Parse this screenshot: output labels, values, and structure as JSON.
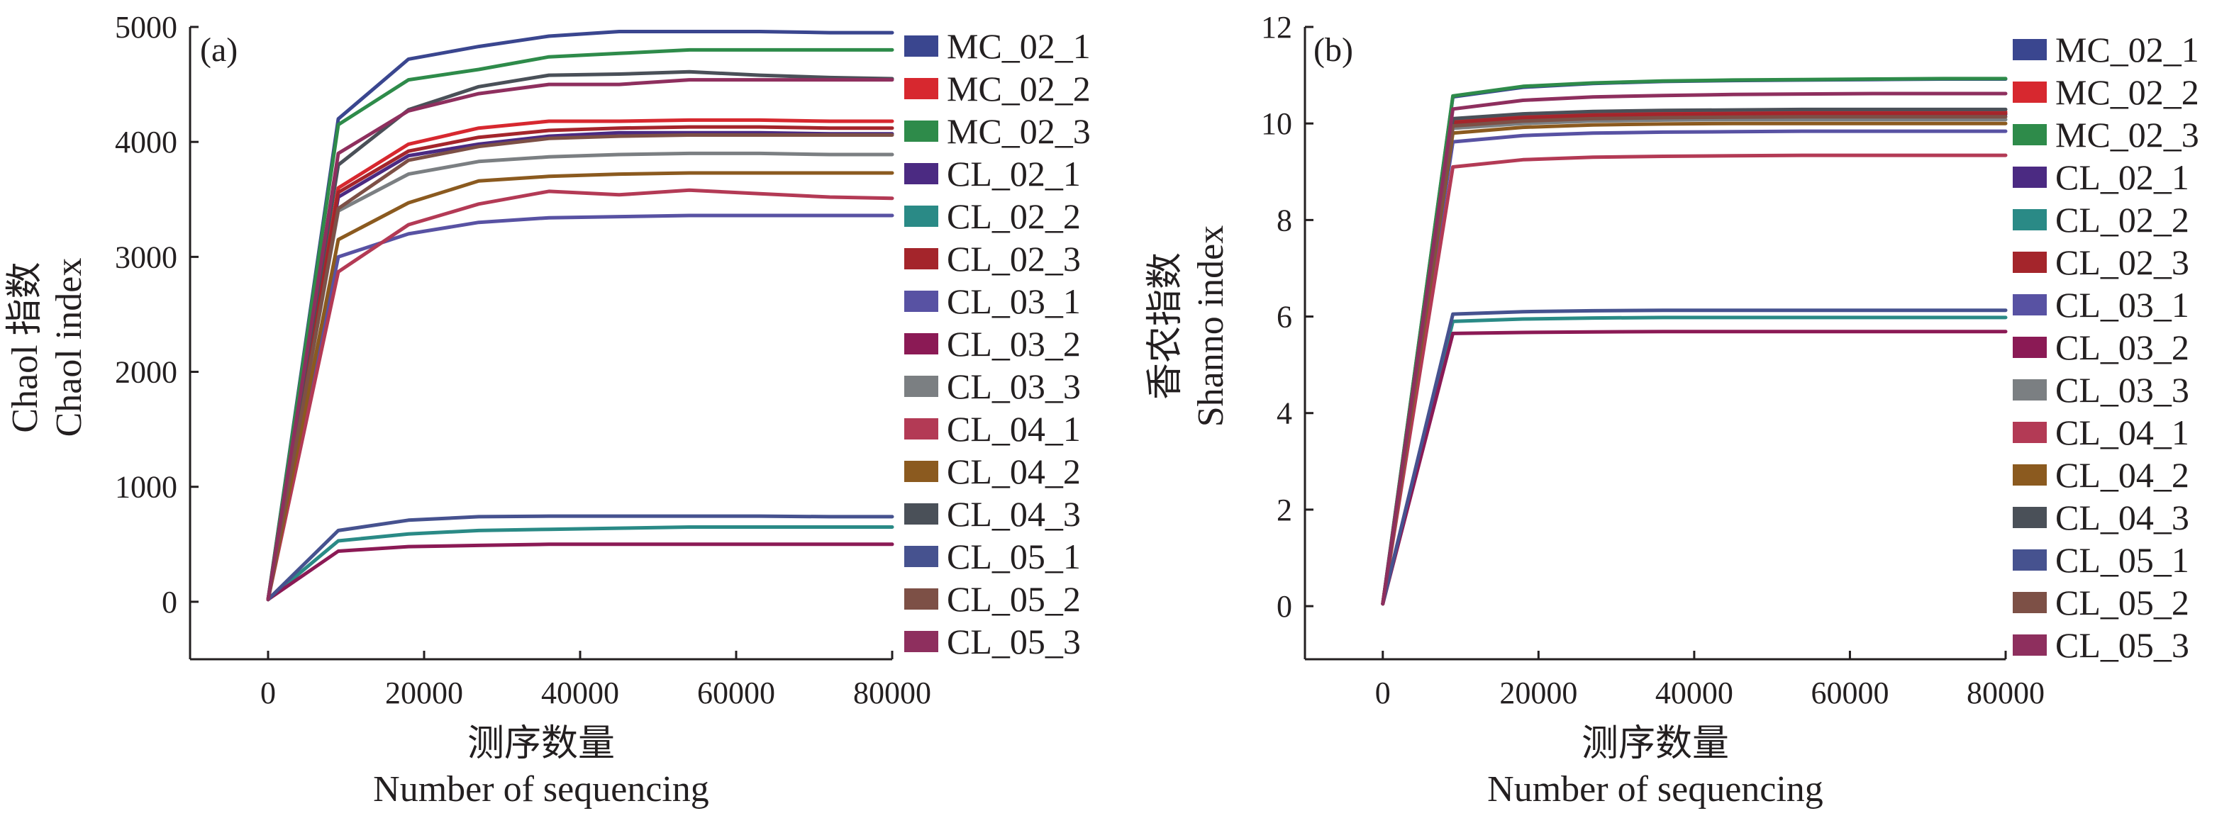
{
  "chart_data": [
    {
      "type": "line",
      "panel_label": "(a)",
      "xlabel_cn": "测序数量",
      "xlabel_en": "Number of sequencing",
      "ylabel_cn": "Chaol 指数",
      "ylabel_en": "Chaol index",
      "xlim": [
        -10000,
        80000
      ],
      "ylim": [
        -500,
        5000
      ],
      "xticks": [
        "0",
        "20000",
        "40000",
        "60000",
        "80000"
      ],
      "yticks": [
        "0",
        "1000",
        "2000",
        "3000",
        "4000",
        "5000"
      ],
      "grid": false,
      "legend_position": "right",
      "series": [
        {
          "name": "MC_02_1",
          "color": "#3a468f",
          "x": [
            0,
            9000,
            18000,
            27000,
            36000,
            45000,
            54000,
            63000,
            72000,
            80000
          ],
          "y": [
            20,
            4200,
            4720,
            4830,
            4920,
            4960,
            4960,
            4960,
            4950,
            4950
          ]
        },
        {
          "name": "MC_02_2",
          "color": "#d7282f",
          "x": [
            0,
            9000,
            18000,
            27000,
            36000,
            45000,
            54000,
            63000,
            72000,
            80000
          ],
          "y": [
            20,
            3600,
            3980,
            4120,
            4180,
            4180,
            4190,
            4190,
            4180,
            4180
          ]
        },
        {
          "name": "MC_02_3",
          "color": "#2e8b4a",
          "x": [
            0,
            9000,
            18000,
            27000,
            36000,
            45000,
            54000,
            63000,
            72000,
            80000
          ],
          "y": [
            20,
            4150,
            4540,
            4630,
            4740,
            4770,
            4800,
            4800,
            4800,
            4800
          ]
        },
        {
          "name": "CL_02_1",
          "color": "#4b2a82",
          "x": [
            0,
            9000,
            18000,
            27000,
            36000,
            45000,
            54000,
            63000,
            72000,
            80000
          ],
          "y": [
            20,
            3520,
            3880,
            3980,
            4050,
            4080,
            4080,
            4080,
            4070,
            4070
          ]
        },
        {
          "name": "CL_02_2",
          "color": "#2a8a86",
          "x": [
            0,
            9000,
            18000,
            27000,
            36000,
            45000,
            54000,
            63000,
            72000,
            80000
          ],
          "y": [
            20,
            530,
            590,
            620,
            630,
            640,
            650,
            650,
            650,
            650
          ]
        },
        {
          "name": "CL_02_3",
          "color": "#a4252b",
          "x": [
            0,
            9000,
            18000,
            27000,
            36000,
            45000,
            54000,
            63000,
            72000,
            80000
          ],
          "y": [
            20,
            3560,
            3920,
            4040,
            4100,
            4120,
            4130,
            4130,
            4120,
            4120
          ]
        },
        {
          "name": "CL_03_1",
          "color": "#5852a3",
          "x": [
            0,
            9000,
            18000,
            27000,
            36000,
            45000,
            54000,
            63000,
            72000,
            80000
          ],
          "y": [
            20,
            3000,
            3200,
            3300,
            3340,
            3350,
            3360,
            3360,
            3360,
            3360
          ]
        },
        {
          "name": "CL_03_2",
          "color": "#8b1a55",
          "x": [
            0,
            9000,
            18000,
            27000,
            36000,
            45000,
            54000,
            63000,
            72000,
            80000
          ],
          "y": [
            20,
            440,
            480,
            490,
            500,
            500,
            500,
            500,
            500,
            500
          ]
        },
        {
          "name": "CL_03_3",
          "color": "#7b7f82",
          "x": [
            0,
            9000,
            18000,
            27000,
            36000,
            45000,
            54000,
            63000,
            72000,
            80000
          ],
          "y": [
            20,
            3400,
            3720,
            3830,
            3870,
            3890,
            3900,
            3900,
            3890,
            3890
          ]
        },
        {
          "name": "CL_04_1",
          "color": "#b33a55",
          "x": [
            0,
            9000,
            18000,
            27000,
            36000,
            45000,
            54000,
            63000,
            72000,
            80000
          ],
          "y": [
            20,
            2870,
            3280,
            3460,
            3570,
            3540,
            3580,
            3550,
            3520,
            3510
          ]
        },
        {
          "name": "CL_04_2",
          "color": "#8b5a1f",
          "x": [
            0,
            9000,
            18000,
            27000,
            36000,
            45000,
            54000,
            63000,
            72000,
            80000
          ],
          "y": [
            20,
            3150,
            3470,
            3660,
            3700,
            3720,
            3730,
            3730,
            3730,
            3730
          ]
        },
        {
          "name": "CL_04_3",
          "color": "#4a5058",
          "x": [
            0,
            9000,
            18000,
            27000,
            36000,
            45000,
            54000,
            63000,
            72000,
            80000
          ],
          "y": [
            20,
            3800,
            4280,
            4480,
            4580,
            4590,
            4610,
            4580,
            4560,
            4550
          ]
        },
        {
          "name": "CL_05_1",
          "color": "#46528f",
          "x": [
            0,
            9000,
            18000,
            27000,
            36000,
            45000,
            54000,
            63000,
            72000,
            80000
          ],
          "y": [
            20,
            620,
            710,
            740,
            745,
            745,
            745,
            745,
            740,
            740
          ]
        },
        {
          "name": "CL_05_2",
          "color": "#7d5046",
          "x": [
            0,
            9000,
            18000,
            27000,
            36000,
            45000,
            54000,
            63000,
            72000,
            80000
          ],
          "y": [
            20,
            3420,
            3840,
            3960,
            4030,
            4050,
            4060,
            4060,
            4060,
            4060
          ]
        },
        {
          "name": "CL_05_3",
          "color": "#8e2f5e",
          "x": [
            0,
            9000,
            18000,
            27000,
            36000,
            45000,
            54000,
            63000,
            72000,
            80000
          ],
          "y": [
            20,
            3900,
            4270,
            4420,
            4500,
            4500,
            4540,
            4540,
            4540,
            4540
          ]
        }
      ]
    },
    {
      "type": "line",
      "panel_label": "(b)",
      "xlabel_cn": "测序数量",
      "xlabel_en": "Number of sequencing",
      "ylabel_cn": "香农指数",
      "ylabel_en": "Shanno index",
      "xlim": [
        -10000,
        80000
      ],
      "ylim": [
        -1.1,
        12
      ],
      "xticks": [
        "0",
        "20000",
        "40000",
        "60000",
        "80000"
      ],
      "yticks": [
        "0",
        "2",
        "4",
        "6",
        "8",
        "10",
        "12"
      ],
      "grid": false,
      "legend_position": "right",
      "series": [
        {
          "name": "MC_02_1",
          "color": "#3a468f",
          "x": [
            0,
            9000,
            18000,
            27000,
            36000,
            45000,
            54000,
            63000,
            72000,
            80000
          ],
          "y": [
            0.05,
            10.55,
            10.75,
            10.83,
            10.87,
            10.89,
            10.9,
            10.91,
            10.92,
            10.92
          ]
        },
        {
          "name": "MC_02_2",
          "color": "#d7282f",
          "x": [
            0,
            9000,
            18000,
            27000,
            36000,
            45000,
            54000,
            63000,
            72000,
            80000
          ],
          "y": [
            0.05,
            10.05,
            10.15,
            10.2,
            10.22,
            10.23,
            10.24,
            10.24,
            10.24,
            10.24
          ]
        },
        {
          "name": "MC_02_3",
          "color": "#2e8b4a",
          "x": [
            0,
            9000,
            18000,
            27000,
            36000,
            45000,
            54000,
            63000,
            72000,
            80000
          ],
          "y": [
            0.05,
            10.57,
            10.77,
            10.84,
            10.88,
            10.9,
            10.91,
            10.92,
            10.93,
            10.93
          ]
        },
        {
          "name": "CL_02_1",
          "color": "#4b2a82",
          "x": [
            0,
            9000,
            18000,
            27000,
            36000,
            45000,
            54000,
            63000,
            72000,
            80000
          ],
          "y": [
            0.05,
            10.0,
            10.1,
            10.15,
            10.17,
            10.18,
            10.19,
            10.19,
            10.19,
            10.19
          ]
        },
        {
          "name": "CL_02_2",
          "color": "#2a8a86",
          "x": [
            0,
            9000,
            18000,
            27000,
            36000,
            45000,
            54000,
            63000,
            72000,
            80000
          ],
          "y": [
            0.05,
            5.9,
            5.95,
            5.97,
            5.98,
            5.98,
            5.98,
            5.98,
            5.98,
            5.98
          ]
        },
        {
          "name": "CL_02_3",
          "color": "#a4252b",
          "x": [
            0,
            9000,
            18000,
            27000,
            36000,
            45000,
            54000,
            63000,
            72000,
            80000
          ],
          "y": [
            0.05,
            10.02,
            10.12,
            10.17,
            10.19,
            10.2,
            10.21,
            10.21,
            10.21,
            10.21
          ]
        },
        {
          "name": "CL_03_1",
          "color": "#5852a3",
          "x": [
            0,
            9000,
            18000,
            27000,
            36000,
            45000,
            54000,
            63000,
            72000,
            80000
          ],
          "y": [
            0.05,
            9.62,
            9.75,
            9.8,
            9.82,
            9.83,
            9.84,
            9.84,
            9.84,
            9.84
          ]
        },
        {
          "name": "CL_03_2",
          "color": "#8b1a55",
          "x": [
            0,
            9000,
            18000,
            27000,
            36000,
            45000,
            54000,
            63000,
            72000,
            80000
          ],
          "y": [
            0.05,
            5.65,
            5.67,
            5.68,
            5.69,
            5.69,
            5.69,
            5.69,
            5.69,
            5.69
          ]
        },
        {
          "name": "CL_03_3",
          "color": "#7b7f82",
          "x": [
            0,
            9000,
            18000,
            27000,
            36000,
            45000,
            54000,
            63000,
            72000,
            80000
          ],
          "y": [
            0.05,
            9.9,
            10.0,
            10.05,
            10.07,
            10.08,
            10.08,
            10.08,
            10.08,
            10.08
          ]
        },
        {
          "name": "CL_04_1",
          "color": "#b33a55",
          "x": [
            0,
            9000,
            18000,
            27000,
            36000,
            45000,
            54000,
            63000,
            72000,
            80000
          ],
          "y": [
            0.05,
            9.1,
            9.25,
            9.3,
            9.32,
            9.33,
            9.34,
            9.34,
            9.34,
            9.34
          ]
        },
        {
          "name": "CL_04_2",
          "color": "#8b5a1f",
          "x": [
            0,
            9000,
            18000,
            27000,
            36000,
            45000,
            54000,
            63000,
            72000,
            80000
          ],
          "y": [
            0.05,
            9.8,
            9.92,
            9.97,
            9.99,
            10.0,
            10.0,
            10.0,
            10.0,
            10.0
          ]
        },
        {
          "name": "CL_04_3",
          "color": "#4a5058",
          "x": [
            0,
            9000,
            18000,
            27000,
            36000,
            45000,
            54000,
            63000,
            72000,
            80000
          ],
          "y": [
            0.05,
            10.1,
            10.2,
            10.25,
            10.27,
            10.28,
            10.29,
            10.29,
            10.29,
            10.29
          ]
        },
        {
          "name": "CL_05_1",
          "color": "#46528f",
          "x": [
            0,
            9000,
            18000,
            27000,
            36000,
            45000,
            54000,
            63000,
            72000,
            80000
          ],
          "y": [
            0.05,
            6.05,
            6.1,
            6.12,
            6.13,
            6.13,
            6.13,
            6.13,
            6.13,
            6.13
          ]
        },
        {
          "name": "CL_05_2",
          "color": "#7d5046",
          "x": [
            0,
            9000,
            18000,
            27000,
            36000,
            45000,
            54000,
            63000,
            72000,
            80000
          ],
          "y": [
            0.05,
            9.95,
            10.05,
            10.1,
            10.12,
            10.13,
            10.14,
            10.14,
            10.14,
            10.14
          ]
        },
        {
          "name": "CL_05_3",
          "color": "#8e2f5e",
          "x": [
            0,
            9000,
            18000,
            27000,
            36000,
            45000,
            54000,
            63000,
            72000,
            80000
          ],
          "y": [
            0.05,
            10.3,
            10.48,
            10.55,
            10.58,
            10.6,
            10.61,
            10.62,
            10.62,
            10.62
          ]
        }
      ]
    }
  ]
}
